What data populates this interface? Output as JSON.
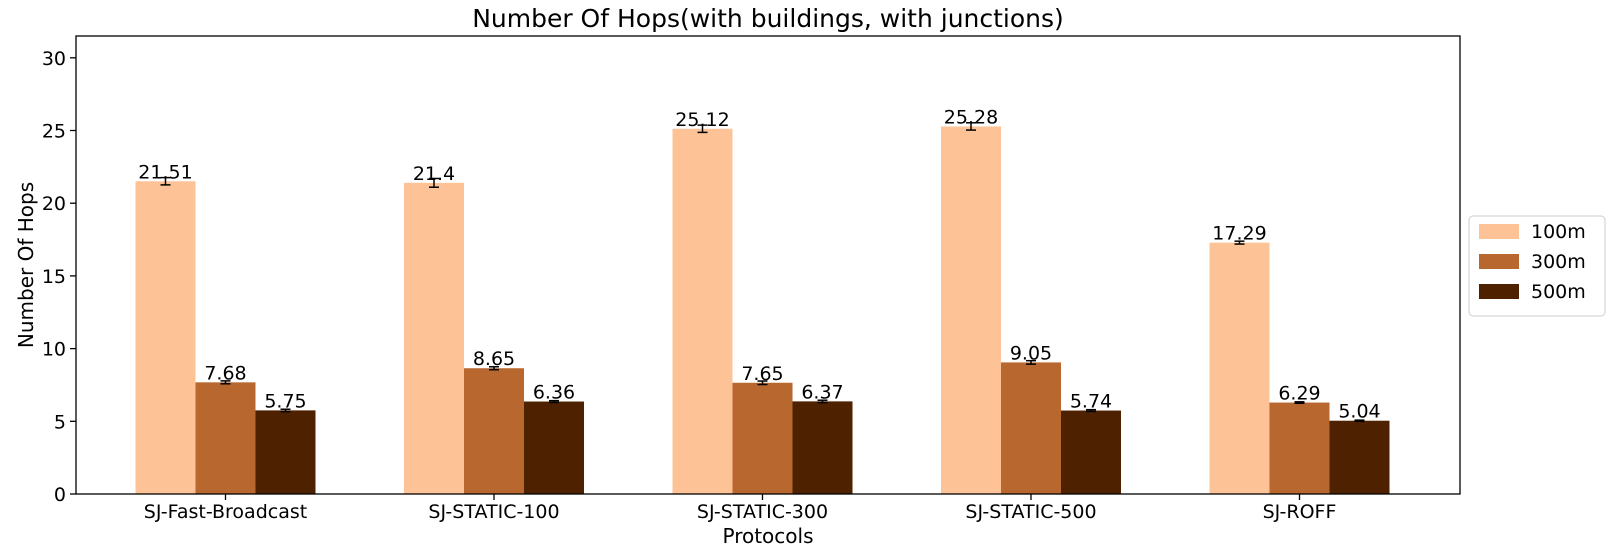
{
  "chart_data": {
    "type": "bar",
    "title": "Number Of Hops(with buildings, with junctions)",
    "xlabel": "Protocols",
    "ylabel": "Number Of Hops",
    "ylim": [
      0,
      31.5
    ],
    "yticks": [
      0,
      5,
      10,
      15,
      20,
      25,
      30
    ],
    "grid": false,
    "legend_position": "right",
    "categories": [
      "SJ-Fast-Broadcast",
      "SJ-STATIC-100",
      "SJ-STATIC-300",
      "SJ-STATIC-500",
      "SJ-ROFF"
    ],
    "series": [
      {
        "name": "100m",
        "color": "#fdc397",
        "values": [
          21.51,
          21.4,
          25.12,
          25.28,
          17.29
        ],
        "labels": [
          "21.51",
          "21.4",
          "25.12",
          "25.28",
          "17.29"
        ],
        "errors": [
          0.25,
          0.3,
          0.25,
          0.25,
          0.1
        ]
      },
      {
        "name": "300m",
        "color": "#b8672e",
        "values": [
          7.68,
          8.65,
          7.65,
          9.05,
          6.29
        ],
        "labels": [
          "7.68",
          "8.65",
          "7.65",
          "9.05",
          "6.29"
        ],
        "errors": [
          0.1,
          0.1,
          0.12,
          0.12,
          0.05
        ]
      },
      {
        "name": "500m",
        "color": "#4e2100",
        "values": [
          5.75,
          6.36,
          6.37,
          5.74,
          5.04
        ],
        "labels": [
          "5.75",
          "6.36",
          "6.37",
          "5.74",
          "5.04"
        ],
        "errors": [
          0.08,
          0.06,
          0.08,
          0.06,
          0.04
        ]
      }
    ]
  }
}
